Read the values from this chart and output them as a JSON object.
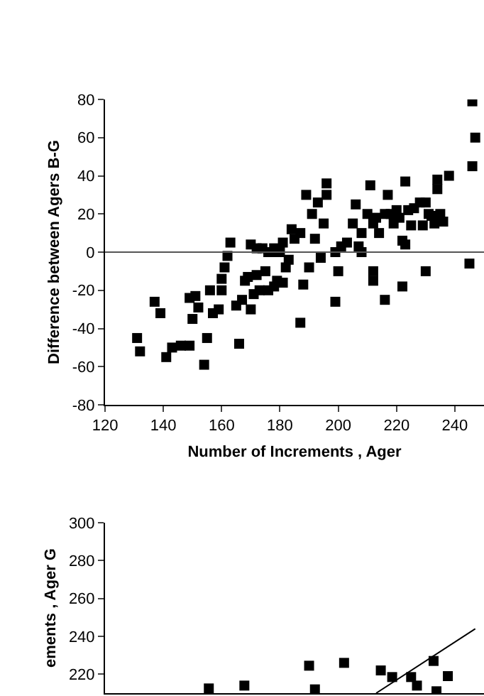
{
  "chart_data": [
    {
      "type": "scatter",
      "xlabel": "Number of Increments , Ager",
      "ylabel": "Difference between Agers B-G",
      "xlim": [
        120,
        250
      ],
      "xticks": [
        120,
        140,
        160,
        180,
        200,
        220,
        240
      ],
      "ylim": [
        -80,
        80
      ],
      "yticks": [
        -80,
        -60,
        -40,
        -20,
        0,
        20,
        40,
        60,
        80
      ],
      "grid": false,
      "legend": false,
      "marker": "square",
      "ref_lines": [
        {
          "axis": "y",
          "value": 0,
          "color": "#555555"
        }
      ],
      "series": [
        {
          "color": "#000000",
          "x": [
            131,
            132,
            137,
            139,
            141,
            143,
            146,
            149,
            149,
            150,
            151,
            152,
            154,
            155,
            156,
            157,
            159,
            160,
            160,
            161,
            162,
            163,
            165,
            166,
            167,
            168,
            169,
            170,
            170,
            171,
            172,
            172,
            173,
            174,
            175,
            176,
            176,
            177,
            178,
            178,
            179,
            180,
            181,
            181,
            182,
            183,
            184,
            185,
            187,
            187,
            188,
            189,
            190,
            191,
            192,
            193,
            194,
            195,
            196,
            196,
            199,
            199,
            200,
            201,
            203,
            205,
            206,
            207,
            208,
            208,
            210,
            211,
            212,
            212,
            212,
            213,
            214,
            216,
            216,
            217,
            218,
            219,
            220,
            221,
            222,
            222,
            223,
            223,
            224,
            225,
            226,
            228,
            229,
            230,
            230,
            231,
            232,
            233,
            234,
            234,
            235,
            236,
            238,
            245,
            246,
            246,
            247
          ],
          "values": [
            -45,
            -52,
            -26,
            -32,
            -55,
            -50,
            -49,
            -49,
            -24,
            -35,
            -23,
            -29,
            -59,
            -45,
            -20,
            -32,
            -30,
            -20,
            -14,
            -8,
            -2,
            5,
            -28,
            -48,
            -25,
            -15,
            -13,
            -30,
            4,
            -22,
            -12,
            2,
            -20,
            2,
            -10,
            -20,
            0,
            0,
            -18,
            2,
            -15,
            0,
            -16,
            5,
            -8,
            -4,
            12,
            7,
            -37,
            10,
            -17,
            30,
            -8,
            20,
            7,
            26,
            -3,
            15,
            30,
            36,
            0,
            -26,
            -10,
            3,
            5,
            15,
            25,
            3,
            10,
            0,
            20,
            35,
            -10,
            -15,
            15,
            18,
            10,
            20,
            -25,
            30,
            20,
            15,
            22,
            18,
            6,
            -18,
            4,
            37,
            22,
            14,
            23,
            26,
            14,
            -10,
            26,
            20,
            19,
            15,
            33,
            38,
            20,
            16,
            40,
            -6,
            45,
            79,
            60
          ]
        }
      ]
    },
    {
      "type": "scatter",
      "ylabel": "ements , Ager G",
      "xlim": [
        120,
        250
      ],
      "ylim": [
        210,
        300
      ],
      "yticks": [
        220,
        240,
        260,
        280,
        300
      ],
      "tick_labels": "y",
      "grid": false,
      "legend": false,
      "series": [
        {
          "marker": "square",
          "color": "#000000",
          "x": [
            155.6,
            167.8,
            190,
            192,
            202,
            214.6,
            218.5,
            225,
            227,
            232.7,
            233.7,
            237.6
          ],
          "values": [
            212.5,
            214,
            224.5,
            212,
            226,
            222,
            218.5,
            218.5,
            214,
            227,
            211,
            219
          ]
        },
        {
          "type": "line",
          "color": "#000000",
          "x": [
            213,
            247
          ],
          "values": [
            210,
            244
          ]
        }
      ]
    }
  ]
}
